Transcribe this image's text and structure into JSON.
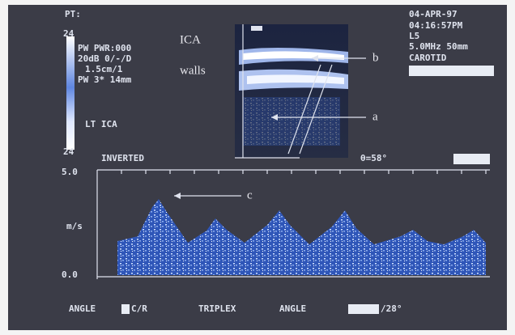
{
  "header": {
    "patient": "PT:",
    "date": "04-APR-97",
    "time": "04:16:57PM",
    "probe": "L5",
    "frequency_depth": "5.0MHz  50mm",
    "preset": "CAROTID"
  },
  "settings": {
    "lines": [
      "PW PWR:000",
      "20dB 0/-/D",
      "1.5cm/1",
      "PW 3* 14mm"
    ],
    "vessel": "LT ICA",
    "scale_top": "24",
    "scale_bottom": "24"
  },
  "annotations": {
    "ica": "ICA",
    "walls": "walls",
    "a": "a",
    "b": "b",
    "c": "c"
  },
  "doppler": {
    "mode": "INVERTED",
    "angle": "θ=58°",
    "scale_max": "5.0",
    "unit": "m/s",
    "scale_min": "0.0"
  },
  "footer": {
    "angle_label": "ANGLE",
    "cr": "C/R",
    "mode": "TRIPLEX",
    "angle_label_2": "ANGLE",
    "angle_value": "/28°"
  }
}
